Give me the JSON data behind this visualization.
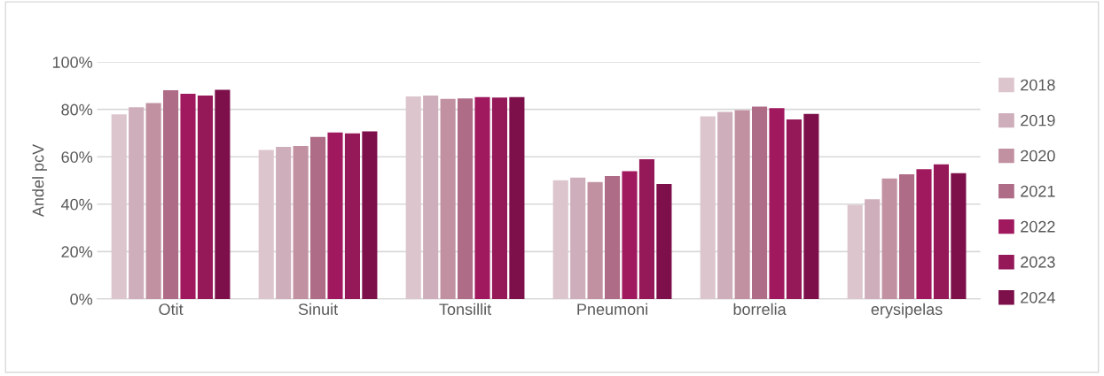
{
  "chart_data": {
    "type": "bar",
    "ylabel": "Andel pcV",
    "categories": [
      "Otit",
      "Sinuit",
      "Tonsillit",
      "Pneumoni",
      "borrelia",
      "erysipelas"
    ],
    "series": [
      {
        "name": "2018",
        "color": "#dcc5cd",
        "values": [
          77.9,
          62.9,
          85.5,
          50.1,
          77.1,
          39.7
        ]
      },
      {
        "name": "2019",
        "color": "#cfaebb",
        "values": [
          80.9,
          64.2,
          85.9,
          51.2,
          78.9,
          42.1
        ]
      },
      {
        "name": "2020",
        "color": "#c191a2",
        "values": [
          82.7,
          64.6,
          84.5,
          49.3,
          79.7,
          50.8
        ]
      },
      {
        "name": "2021",
        "color": "#ae6c87",
        "values": [
          88.1,
          68.4,
          84.6,
          51.9,
          81.2,
          52.6
        ]
      },
      {
        "name": "2022",
        "color": "#a0195f",
        "values": [
          86.6,
          70.3,
          85.2,
          53.9,
          80.5,
          54.8
        ]
      },
      {
        "name": "2023",
        "color": "#951858",
        "values": [
          85.9,
          69.9,
          85.0,
          59.0,
          75.8,
          56.8
        ]
      },
      {
        "name": "2024",
        "color": "#7d0f4a",
        "values": [
          88.3,
          70.7,
          85.2,
          48.5,
          78.1,
          53.1
        ]
      }
    ],
    "ylim": [
      0,
      100
    ],
    "yticks": [
      {
        "value": 0,
        "label": "0%"
      },
      {
        "value": 20,
        "label": "20%"
      },
      {
        "value": 40,
        "label": "40%"
      },
      {
        "value": 60,
        "label": "60%"
      },
      {
        "value": 80,
        "label": "80%"
      },
      {
        "value": 100,
        "label": "100%"
      }
    ],
    "grid": "y",
    "legend": "right"
  }
}
